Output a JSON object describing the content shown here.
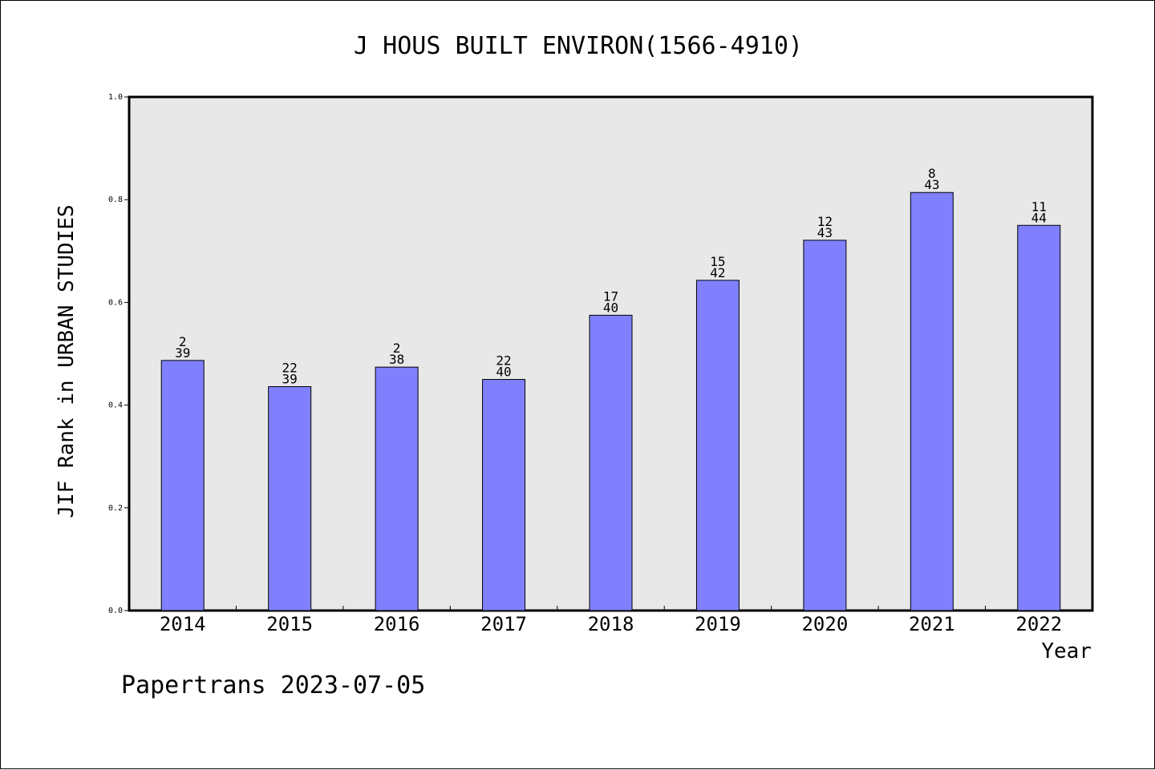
{
  "chart_data": {
    "type": "bar",
    "title": "J HOUS BUILT ENVIRON(1566-4910)",
    "xlabel": "Year",
    "ylabel": "JIF Rank in URBAN STUDIES",
    "categories": [
      "2014",
      "2015",
      "2016",
      "2017",
      "2018",
      "2019",
      "2020",
      "2021",
      "2022"
    ],
    "values": [
      0.487,
      0.436,
      0.474,
      0.45,
      0.575,
      0.643,
      0.721,
      0.814,
      0.75
    ],
    "rank_labels": [
      {
        "rank": "2",
        "total": "39"
      },
      {
        "rank": "22",
        "total": "39"
      },
      {
        "rank": "2",
        "total": "38"
      },
      {
        "rank": "22",
        "total": "40"
      },
      {
        "rank": "17",
        "total": "40"
      },
      {
        "rank": "15",
        "total": "42"
      },
      {
        "rank": "12",
        "total": "43"
      },
      {
        "rank": "8",
        "total": "43"
      },
      {
        "rank": "11",
        "total": "44"
      }
    ],
    "ylim": [
      0,
      1.0
    ],
    "yticks": [
      "0.0",
      "0.2",
      "0.4",
      "0.6",
      "0.8",
      "1.0"
    ],
    "grid": false,
    "bar_color": "#8080ff",
    "plot_background": "#e8e8e8"
  },
  "footer": {
    "text": "Papertrans 2023-07-05"
  }
}
